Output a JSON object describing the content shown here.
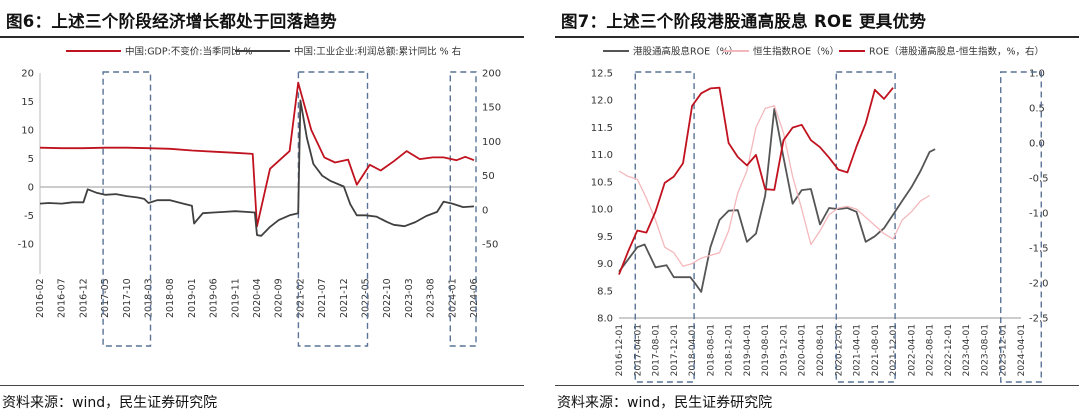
{
  "panels": [
    {
      "title": "图6：上述三个阶段经济增长都处于回落趋势",
      "source": "资料来源：wind，民生证券研究院",
      "chart_data": {
        "type": "line",
        "legend_position": "top",
        "x_tick_labels": [
          "2016-02",
          "2016-07",
          "2016-12",
          "2017-05",
          "2017-10",
          "2018-03",
          "2018-08",
          "2019-01",
          "2019-06",
          "2019-11",
          "2020-04",
          "2020-09",
          "2021-02",
          "2021-07",
          "2021-12",
          "2022-05",
          "2022-10",
          "2023-03",
          "2023-08",
          "2024-01",
          "2024-06"
        ],
        "y_left": {
          "min": -10,
          "max": 20,
          "ticks": [
            -10,
            -5,
            0,
            5,
            10,
            15,
            20
          ]
        },
        "y_right": {
          "min": -50,
          "max": 200,
          "ticks": [
            -50,
            0,
            50,
            100,
            150,
            200
          ]
        },
        "highlight_ranges": [
          [
            3,
            5
          ],
          [
            12,
            15
          ],
          [
            19,
            20
          ]
        ],
        "series": [
          {
            "name": "中国:GDP:不变价:当季同比 %",
            "color": "#c0121f",
            "axis": "left",
            "points": [
              [
                0,
                6.9
              ],
              [
                1,
                6.8
              ],
              [
                2,
                6.8
              ],
              [
                3,
                6.9
              ],
              [
                4,
                6.9
              ],
              [
                5,
                6.8
              ],
              [
                6,
                6.7
              ],
              [
                7,
                6.4
              ],
              [
                8,
                6.2
              ],
              [
                9,
                6.0
              ],
              [
                9.8,
                5.8
              ],
              [
                10,
                -6.9
              ],
              [
                10.6,
                3.2
              ],
              [
                11.5,
                6.3
              ],
              [
                11.9,
                18.3
              ],
              [
                12.5,
                10.0
              ],
              [
                13.1,
                5.2
              ],
              [
                13.6,
                4.3
              ],
              [
                14.2,
                4.8
              ],
              [
                14.6,
                0.4
              ],
              [
                15.2,
                3.9
              ],
              [
                15.7,
                2.9
              ],
              [
                16.3,
                4.5
              ],
              [
                16.9,
                6.3
              ],
              [
                17.5,
                4.9
              ],
              [
                18.1,
                5.2
              ],
              [
                18.6,
                5.2
              ],
              [
                19.2,
                4.7
              ],
              [
                19.6,
                5.3
              ],
              [
                20,
                4.7
              ]
            ]
          },
          {
            "name": "中国:工业企业:利润总额:累计同比 % 右",
            "color": "#404040",
            "axis": "right",
            "points": [
              [
                0,
                9
              ],
              [
                0.4,
                10
              ],
              [
                1,
                9
              ],
              [
                1.5,
                11
              ],
              [
                2,
                11
              ],
              [
                2.2,
                30
              ],
              [
                2.6,
                25
              ],
              [
                3,
                22
              ],
              [
                3.5,
                23
              ],
              [
                4,
                20
              ],
              [
                4.5,
                18
              ],
              [
                4.8,
                16
              ],
              [
                5,
                10
              ],
              [
                5.4,
                14
              ],
              [
                6,
                14
              ],
              [
                6.6,
                9
              ],
              [
                7,
                6
              ],
              [
                7.1,
                -20
              ],
              [
                7.5,
                -5
              ],
              [
                8,
                -4
              ],
              [
                8.5,
                -3
              ],
              [
                9,
                -2
              ],
              [
                9.5,
                -3
              ],
              [
                9.9,
                -4
              ],
              [
                10,
                -37
              ],
              [
                10.2,
                -38
              ],
              [
                10.6,
                -25
              ],
              [
                11,
                -15
              ],
              [
                11.5,
                -8
              ],
              [
                11.9,
                -5
              ],
              [
                12,
                160
              ],
              [
                12.3,
                105
              ],
              [
                12.6,
                67
              ],
              [
                13,
                50
              ],
              [
                13.4,
                42
              ],
              [
                14,
                34
              ],
              [
                14.3,
                8
              ],
              [
                14.6,
                -8
              ],
              [
                15,
                -8
              ],
              [
                15.5,
                -10
              ],
              [
                16,
                -18
              ],
              [
                16.3,
                -22
              ],
              [
                16.8,
                -24
              ],
              [
                17.3,
                -18
              ],
              [
                17.8,
                -9
              ],
              [
                18.3,
                -3
              ],
              [
                18.6,
                12
              ],
              [
                19,
                9
              ],
              [
                19.5,
                4
              ],
              [
                20,
                5
              ]
            ]
          }
        ]
      }
    },
    {
      "title": "图7：上述三个阶段港股通高股息 ROE 更具优势",
      "source": "资料来源：wind，民生证券研究院",
      "chart_data": {
        "type": "line",
        "legend_position": "top",
        "x_tick_labels": [
          "2016-12-01",
          "2017-04-01",
          "2017-08-01",
          "2017-12-01",
          "2018-04-01",
          "2018-08-01",
          "2018-12-01",
          "2019-04-01",
          "2019-08-01",
          "2019-12-01",
          "2020-04-01",
          "2020-08-01",
          "2020-12-01",
          "2021-04-01",
          "2021-08-01",
          "2021-12-01",
          "2022-04-01",
          "2022-08-01",
          "2022-12-01",
          "2023-04-01",
          "2023-08-01",
          "2023-12-01",
          "2024-04-01"
        ],
        "y_left": {
          "min": 8.0,
          "max": 12.5,
          "ticks": [
            8.0,
            8.5,
            9.0,
            9.5,
            10.0,
            10.5,
            11.0,
            11.5,
            12.0,
            12.5
          ]
        },
        "y_right": {
          "min": -2.5,
          "max": 1.0,
          "ticks": [
            -2.5,
            -2.0,
            -1.5,
            -1.0,
            -0.5,
            0.0,
            0.5,
            1.0
          ]
        },
        "highlight_ranges": [
          [
            1,
            4
          ],
          [
            12,
            15
          ],
          [
            21,
            23
          ]
        ],
        "series": [
          {
            "name": "港股通高股息ROE（%）",
            "color": "#555555",
            "axis": "left",
            "points": [
              [
                0,
                8.85
              ],
              [
                1,
                9.3
              ],
              [
                1.4,
                9.35
              ],
              [
                2,
                8.93
              ],
              [
                2.6,
                8.97
              ],
              [
                3,
                8.75
              ],
              [
                3.5,
                8.75
              ],
              [
                3.9,
                8.75
              ],
              [
                4.2,
                8.62
              ],
              [
                4.5,
                8.48
              ],
              [
                5,
                9.3
              ],
              [
                5.5,
                9.8
              ],
              [
                6,
                9.97
              ],
              [
                6.5,
                9.98
              ],
              [
                7,
                9.4
              ],
              [
                7.5,
                9.55
              ],
              [
                8,
                10.25
              ],
              [
                8.5,
                11.84
              ],
              [
                9,
                10.95
              ],
              [
                9.5,
                10.1
              ],
              [
                10,
                10.35
              ],
              [
                10.5,
                10.37
              ],
              [
                11,
                9.72
              ],
              [
                11.5,
                10.02
              ],
              [
                12,
                10.0
              ],
              [
                12.5,
                10.02
              ],
              [
                13,
                9.95
              ],
              [
                13.5,
                9.4
              ],
              [
                14,
                9.5
              ],
              [
                14.5,
                9.65
              ],
              [
                15,
                9.9
              ],
              [
                15.5,
                10.15
              ],
              [
                16,
                10.4
              ],
              [
                16.5,
                10.7
              ],
              [
                17,
                11.05
              ],
              [
                17.3,
                11.1
              ]
            ]
          },
          {
            "name": "恒生指数ROE（%）",
            "color": "#f4b8bc",
            "axis": "left",
            "points": [
              [
                0,
                10.7
              ],
              [
                0.5,
                10.6
              ],
              [
                1,
                10.55
              ],
              [
                1.5,
                10.2
              ],
              [
                2,
                9.8
              ],
              [
                2.5,
                9.3
              ],
              [
                3,
                9.2
              ],
              [
                3.5,
                8.95
              ],
              [
                4,
                9.0
              ],
              [
                4.5,
                9.1
              ],
              [
                5,
                9.15
              ],
              [
                5.5,
                9.2
              ],
              [
                6,
                9.6
              ],
              [
                6.5,
                10.3
              ],
              [
                7,
                10.7
              ],
              [
                7.5,
                11.5
              ],
              [
                8,
                11.85
              ],
              [
                8.5,
                11.9
              ],
              [
                9,
                11.4
              ],
              [
                9.5,
                10.6
              ],
              [
                10,
                10.0
              ],
              [
                10.5,
                9.35
              ],
              [
                11,
                9.6
              ],
              [
                11.5,
                9.9
              ],
              [
                12,
                10.02
              ],
              [
                12.5,
                10.05
              ],
              [
                13,
                10.0
              ],
              [
                13.5,
                9.85
              ],
              [
                14,
                9.7
              ],
              [
                14.5,
                9.55
              ],
              [
                15,
                9.45
              ],
              [
                15.5,
                9.8
              ],
              [
                16,
                9.95
              ],
              [
                16.5,
                10.15
              ],
              [
                17,
                10.25
              ]
            ]
          },
          {
            "name": "ROE（港股通高股息-恒生指数，%，右）",
            "color": "#c0121f",
            "axis": "right",
            "points": [
              [
                0,
                -1.88
              ],
              [
                0.5,
                -1.55
              ],
              [
                1,
                -1.25
              ],
              [
                1.5,
                -1.28
              ],
              [
                2,
                -0.98
              ],
              [
                2.5,
                -0.57
              ],
              [
                3,
                -0.48
              ],
              [
                3.5,
                -0.29
              ],
              [
                4,
                0.53
              ],
              [
                4.5,
                0.71
              ],
              [
                5,
                0.78
              ],
              [
                5.5,
                0.79
              ],
              [
                6,
                0.0
              ],
              [
                6.5,
                -0.2
              ],
              [
                7,
                -0.32
              ],
              [
                7.5,
                -0.17
              ],
              [
                8,
                -0.66
              ],
              [
                8.5,
                -0.67
              ],
              [
                9,
                0.04
              ],
              [
                9.5,
                0.22
              ],
              [
                10,
                0.26
              ],
              [
                10.5,
                0.04
              ],
              [
                11,
                -0.06
              ],
              [
                11.5,
                -0.21
              ],
              [
                12,
                -0.38
              ],
              [
                12.5,
                -0.42
              ],
              [
                13,
                -0.05
              ],
              [
                13.5,
                0.28
              ],
              [
                14,
                0.76
              ],
              [
                14.5,
                0.63
              ],
              [
                15,
                0.79
              ]
            ]
          }
        ]
      }
    }
  ]
}
